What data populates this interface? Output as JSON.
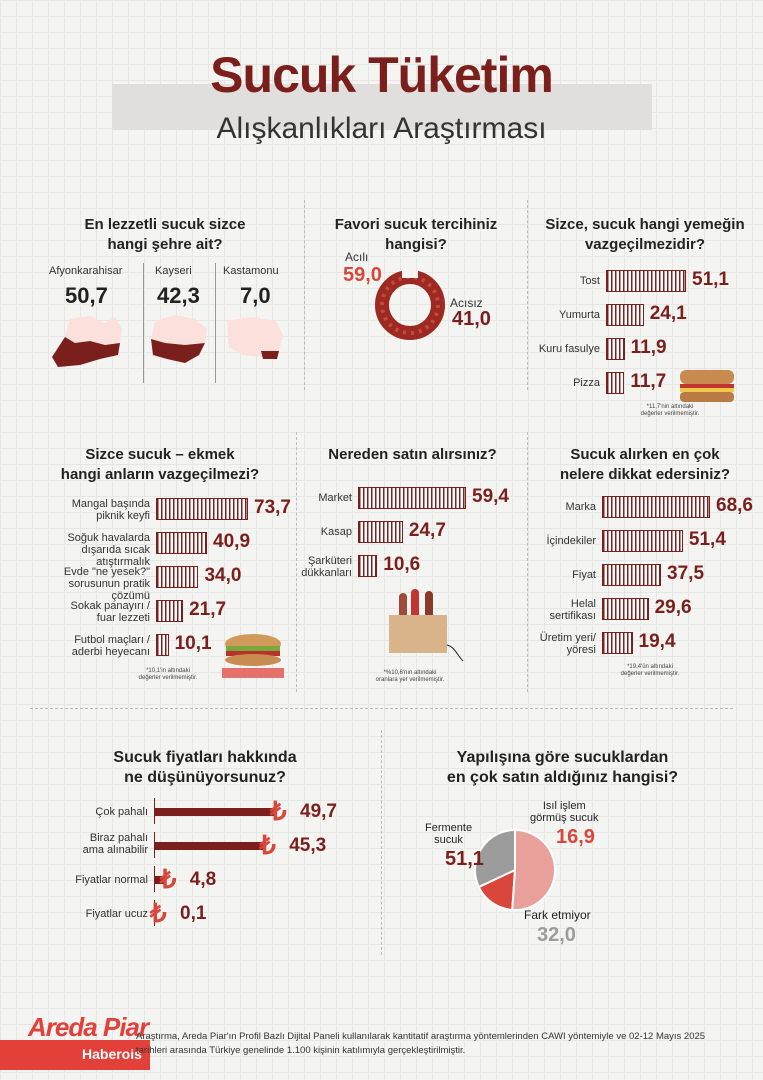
{
  "header": {
    "title": "Sucuk Tüketim",
    "subtitle": "Alışkanlıkları Araştırması"
  },
  "q1": {
    "question": [
      "En lezzetli sucuk sizce",
      "hangi şehre ait?"
    ],
    "items": [
      {
        "city": "Afyonkarahisar",
        "value": "50,7"
      },
      {
        "city": "Kayseri",
        "value": "42,3"
      },
      {
        "city": "Kastamonu",
        "value": "7,0"
      }
    ]
  },
  "q2": {
    "question": "Favori sucuk tercihiniz hangisi?",
    "items": [
      {
        "label": "Acılı",
        "value": "59,0"
      },
      {
        "label": "Acısız",
        "value": "41,0"
      }
    ]
  },
  "q3": {
    "question": [
      "Sizce, sucuk hangi yemeğin",
      "vazgeçilmezidir?"
    ],
    "note": [
      "*11,7'nin altındaki",
      "değerler verilmemiştir."
    ]
  },
  "q4": {
    "question": [
      "Sizce sucuk – ekmek",
      "hangi anların vazgeçilmezi?"
    ],
    "note": [
      "*10,1'in altındaki",
      "değerler verilmemiştir."
    ]
  },
  "q5": {
    "question": "Nereden satın alırsınız?",
    "note": [
      "*%10,6'nın altındaki",
      "oranlara yer verilmemiştir."
    ]
  },
  "q6": {
    "question": [
      "Sucuk alırken en çok",
      "nelere dikkat edersiniz?"
    ],
    "note": [
      "*19,4'ün altındaki",
      "değerler verilmemiştir."
    ]
  },
  "q7": {
    "question": [
      "Sucuk fiyatları hakkında",
      "ne düşünüyorsunuz?"
    ],
    "currency": "₺"
  },
  "q8": {
    "question": [
      "Yapılışına göre sucuklardan",
      "en çok satın aldığınız hangisi?"
    ]
  },
  "chart_data": [
    {
      "type": "bar",
      "title": "Sizce, sucuk hangi yemeğin vazgeçilmezidir?",
      "categories": [
        "Tost",
        "Yumurta",
        "Kuru fasulye",
        "Pizza"
      ],
      "values": [
        51.1,
        24.1,
        11.9,
        11.7
      ],
      "labels": [
        "51,1",
        "24,1",
        "11,9",
        "11,7"
      ]
    },
    {
      "type": "bar",
      "title": "Sizce sucuk – ekmek hangi anların vazgeçilmezi?",
      "categories": [
        "Mangal başında\npiknik keyfi",
        "Soğuk havalarda\ndışarıda sıcak atıştırmalık",
        "Evde \"ne yesek?\"\nsorusunun pratik çözümü",
        "Sokak panayırı /\nfuar lezzeti",
        "Futbol maçları /\naderbi heyecanı"
      ],
      "values": [
        73.7,
        40.9,
        34.0,
        21.7,
        10.1
      ],
      "labels": [
        "73,7",
        "40,9",
        "34,0",
        "21,7",
        "10,1"
      ]
    },
    {
      "type": "bar",
      "title": "Nereden satın alırsınız?",
      "categories": [
        "Market",
        "Kasap",
        "Şarküteri\ndükkanları"
      ],
      "values": [
        59.4,
        24.7,
        10.6
      ],
      "labels": [
        "59,4",
        "24,7",
        "10,6"
      ]
    },
    {
      "type": "bar",
      "title": "Sucuk alırken en çok nelere dikkat edersiniz?",
      "categories": [
        "Marka",
        "İçindekiler",
        "Fiyat",
        "Helal\nsertifikası",
        "Üretim yeri/\nyöresi"
      ],
      "values": [
        68.6,
        51.4,
        37.5,
        29.6,
        19.4
      ],
      "labels": [
        "68,6",
        "51,4",
        "37,5",
        "29,6",
        "19,4"
      ]
    },
    {
      "type": "bar",
      "title": "Sucuk fiyatları hakkında ne düşünüyorsunuz?",
      "categories": [
        "Çok pahalı",
        "Biraz pahalı\nama alınabilir",
        "Fiyatlar normal",
        "Fiyatlar ucuz"
      ],
      "values": [
        49.7,
        45.3,
        4.8,
        0.1
      ],
      "labels": [
        "49,7",
        "45,3",
        "4,8",
        "0,1"
      ]
    },
    {
      "type": "pie",
      "title": "Yapılışına göre sucuklardan en çok satın aldığınız hangisi?",
      "categories": [
        "Fermente\nsucuk",
        "Isıl işlem\ngörmüş sucuk",
        "Fark etmiyor"
      ],
      "values": [
        51.1,
        16.9,
        32.0
      ],
      "labels": [
        "51,1",
        "16,9",
        "32,0"
      ],
      "colors": [
        "#e9a09b",
        "#d8463c",
        "#9c9c9c"
      ]
    }
  ],
  "footer": {
    "logo": "Areda Piar",
    "brand": "Haberois",
    "text": "Araştırma, Areda Piar'ın Profil Bazlı Dijital Paneli kullanılarak kantitatif araştırma yöntemlerinden CAWI yöntemiyle ve 02-12 Mayıs 2025 tarihleri arasında Türkiye genelinde 1.100 kişinin katılımıyla gerçekleştirilmiştir."
  }
}
